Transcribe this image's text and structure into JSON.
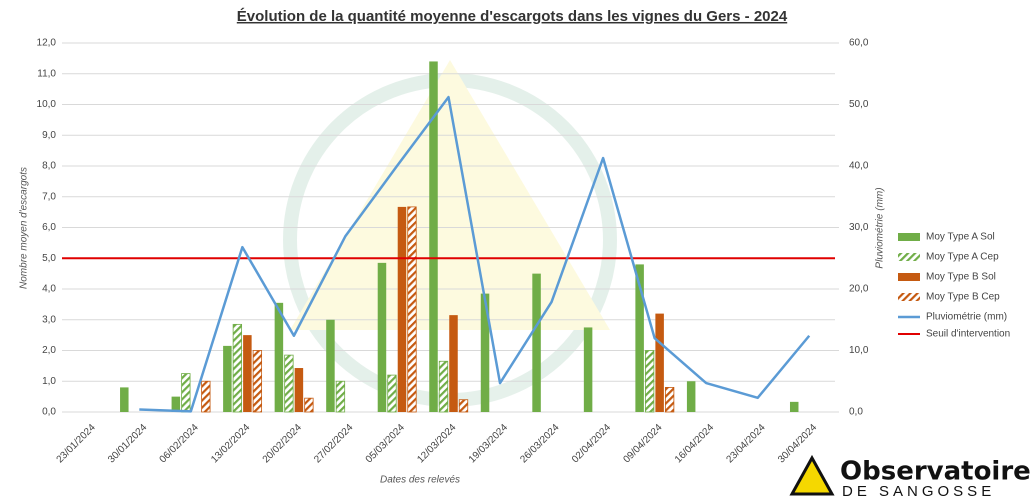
{
  "chart_data": {
    "type": "bar",
    "title": "Évolution de la quantité moyenne d'escargots dans les vignes du Gers - 2024",
    "x_label": "Dates des relevés",
    "y_label": "Nombre moyen d'escargots",
    "y2_label": "Pluviométrie (mm)",
    "categories": [
      "23/01/2024",
      "30/01/2024",
      "06/02/2024",
      "13/02/2024",
      "20/02/2024",
      "27/02/2024",
      "05/03/2024",
      "12/03/2024",
      "19/03/2024",
      "26/03/2024",
      "02/04/2024",
      "09/04/2024",
      "16/04/2024",
      "23/04/2024",
      "30/04/2024"
    ],
    "series": [
      {
        "name": "Moy Type A Sol",
        "color": "#70ad47",
        "hatched": false,
        "values": [
          null,
          0.8,
          0.5,
          2.15,
          3.55,
          3.0,
          4.85,
          11.4,
          3.85,
          4.5,
          2.75,
          4.8,
          1.0,
          null,
          0.33
        ]
      },
      {
        "name": "Moy Type A Cep",
        "color": "#70ad47",
        "hatched": true,
        "values": [
          null,
          null,
          1.25,
          2.85,
          1.85,
          1.0,
          1.2,
          1.65,
          null,
          null,
          null,
          2.0,
          null,
          null,
          null
        ]
      },
      {
        "name": "Moy Type B Sol",
        "color": "#c55a11",
        "hatched": false,
        "values": [
          null,
          null,
          null,
          2.5,
          1.43,
          null,
          6.67,
          3.15,
          null,
          null,
          null,
          3.2,
          null,
          null,
          null
        ]
      },
      {
        "name": "Moy Type B Cep",
        "color": "#c55a11",
        "hatched": true,
        "values": [
          null,
          null,
          1.0,
          2.0,
          0.45,
          null,
          6.67,
          0.4,
          null,
          null,
          null,
          0.8,
          null,
          null,
          null
        ]
      },
      {
        "name": "Pluviométrie (mm)",
        "color": "#5b9bd5",
        "type": "line",
        "axis": "y2",
        "values": [
          null,
          0.4,
          0.1,
          26.8,
          12.4,
          28.6,
          40.0,
          51.2,
          4.7,
          17.9,
          41.3,
          12.0,
          4.7,
          2.3,
          12.4
        ]
      }
    ],
    "threshold": {
      "name": "Seuil d'intervention",
      "value": 5.0,
      "color": "#e00000"
    },
    "ylim": [
      0,
      12
    ],
    "yticks": [
      {
        "value": 0,
        "label": "0,0"
      },
      {
        "value": 1,
        "label": "1,0"
      },
      {
        "value": 2,
        "label": "2,0"
      },
      {
        "value": 3,
        "label": "3,0"
      },
      {
        "value": 4,
        "label": "4,0"
      },
      {
        "value": 5,
        "label": "5,0"
      },
      {
        "value": 6,
        "label": "6,0"
      },
      {
        "value": 7,
        "label": "7,0"
      },
      {
        "value": 8,
        "label": "8,0"
      },
      {
        "value": 9,
        "label": "9,0"
      },
      {
        "value": 10,
        "label": "10,0"
      },
      {
        "value": 11,
        "label": "11,0"
      },
      {
        "value": 12,
        "label": "12,0"
      }
    ],
    "y2lim": [
      0,
      60
    ],
    "y2ticks": [
      {
        "value": 0,
        "label": "0,0"
      },
      {
        "value": 10,
        "label": "10,0"
      },
      {
        "value": 20,
        "label": "20,0"
      },
      {
        "value": 30,
        "label": "30,0"
      },
      {
        "value": 40,
        "label": "40,0"
      },
      {
        "value": 50,
        "label": "50,0"
      },
      {
        "value": 60,
        "label": "60,0"
      }
    ],
    "grid": true,
    "legend": "right",
    "logo": {
      "title": "Observatoire®",
      "subtitle": "DE SANGOSSE"
    }
  }
}
